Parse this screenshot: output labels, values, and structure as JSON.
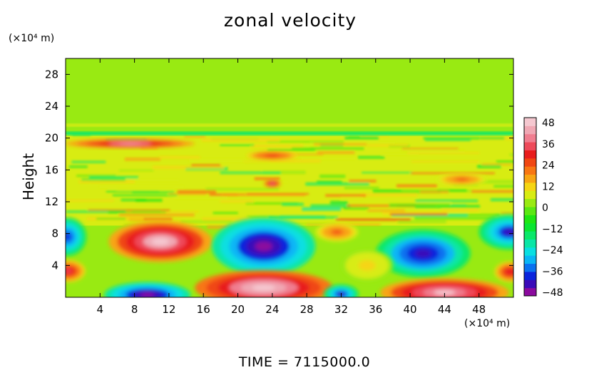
{
  "chart_data": {
    "type": "heatmap",
    "title": "zonal velocity",
    "ylabel": "Height",
    "xlabel": "",
    "x_unit_label": "(×10⁴ m)",
    "y_unit_label": "(×10⁴ m)",
    "xlim": [
      0,
      52
    ],
    "ylim": [
      0,
      30
    ],
    "x_ticks": [
      "4",
      "8",
      "12",
      "16",
      "20",
      "24",
      "28",
      "32",
      "36",
      "40",
      "44",
      "48"
    ],
    "y_ticks": [
      "4",
      "8",
      "12",
      "16",
      "20",
      "24",
      "28"
    ],
    "colorbar": {
      "min": -48,
      "max": 48,
      "step": 3,
      "labels": [
        "48",
        "36",
        "24",
        "12",
        "0",
        "−12",
        "−24",
        "−36",
        "−48"
      ],
      "colors": [
        "#8b0a9e",
        "#3a0ab8",
        "#0a24dc",
        "#0a72f0",
        "#0ab6f5",
        "#0adfe1",
        "#0ae6a6",
        "#0ae869",
        "#0ae630",
        "#1ee612",
        "#5ae812",
        "#99ea12",
        "#d8ec12",
        "#f5d512",
        "#f8a512",
        "#f87612",
        "#f04612",
        "#e81c1c",
        "#ee4a5a",
        "#f07e90",
        "#f0a8b4",
        "#f5c8d0"
      ]
    },
    "grid": false,
    "features": [
      {
        "label": "upper layer",
        "y_range": [
          20.5,
          30
        ],
        "value": 2
      },
      {
        "label": "jet at ~19",
        "x_center": 8,
        "y_center": 19.2,
        "value": 40
      },
      {
        "label": "patch near 17.8",
        "x_center": 24,
        "y_center": 17.8,
        "value": 28
      },
      {
        "label": "small core near 14",
        "x_center": 24,
        "y_center": 14.3,
        "value": 38
      },
      {
        "label": "patch near 15",
        "x_center": 46,
        "y_center": 14.8,
        "value": 22
      },
      {
        "label": "positive lobe",
        "x_center": 10,
        "y_center": 7,
        "value": 45
      },
      {
        "label": "negative lobe",
        "x_center": 23,
        "y_center": 6.5,
        "value": -48
      },
      {
        "label": "negative lobe",
        "x_center": 40,
        "y_center": 5.5,
        "value": -42
      },
      {
        "label": "negative edge",
        "x_center": 51,
        "y_center": 8.5,
        "value": -40
      },
      {
        "label": "negative edge",
        "x_center": 0.5,
        "y_center": 7.5,
        "value": -38
      },
      {
        "label": "positive bottom",
        "x_center": 23,
        "y_center": 1.5,
        "value": 48
      },
      {
        "label": "positive bottom",
        "x_center": 44,
        "y_center": 0.8,
        "value": 44
      },
      {
        "label": "negative bottom",
        "x_center": 9,
        "y_center": 0.5,
        "value": -48
      }
    ]
  },
  "footer": {
    "time_label": "TIME = 7115000.0"
  }
}
